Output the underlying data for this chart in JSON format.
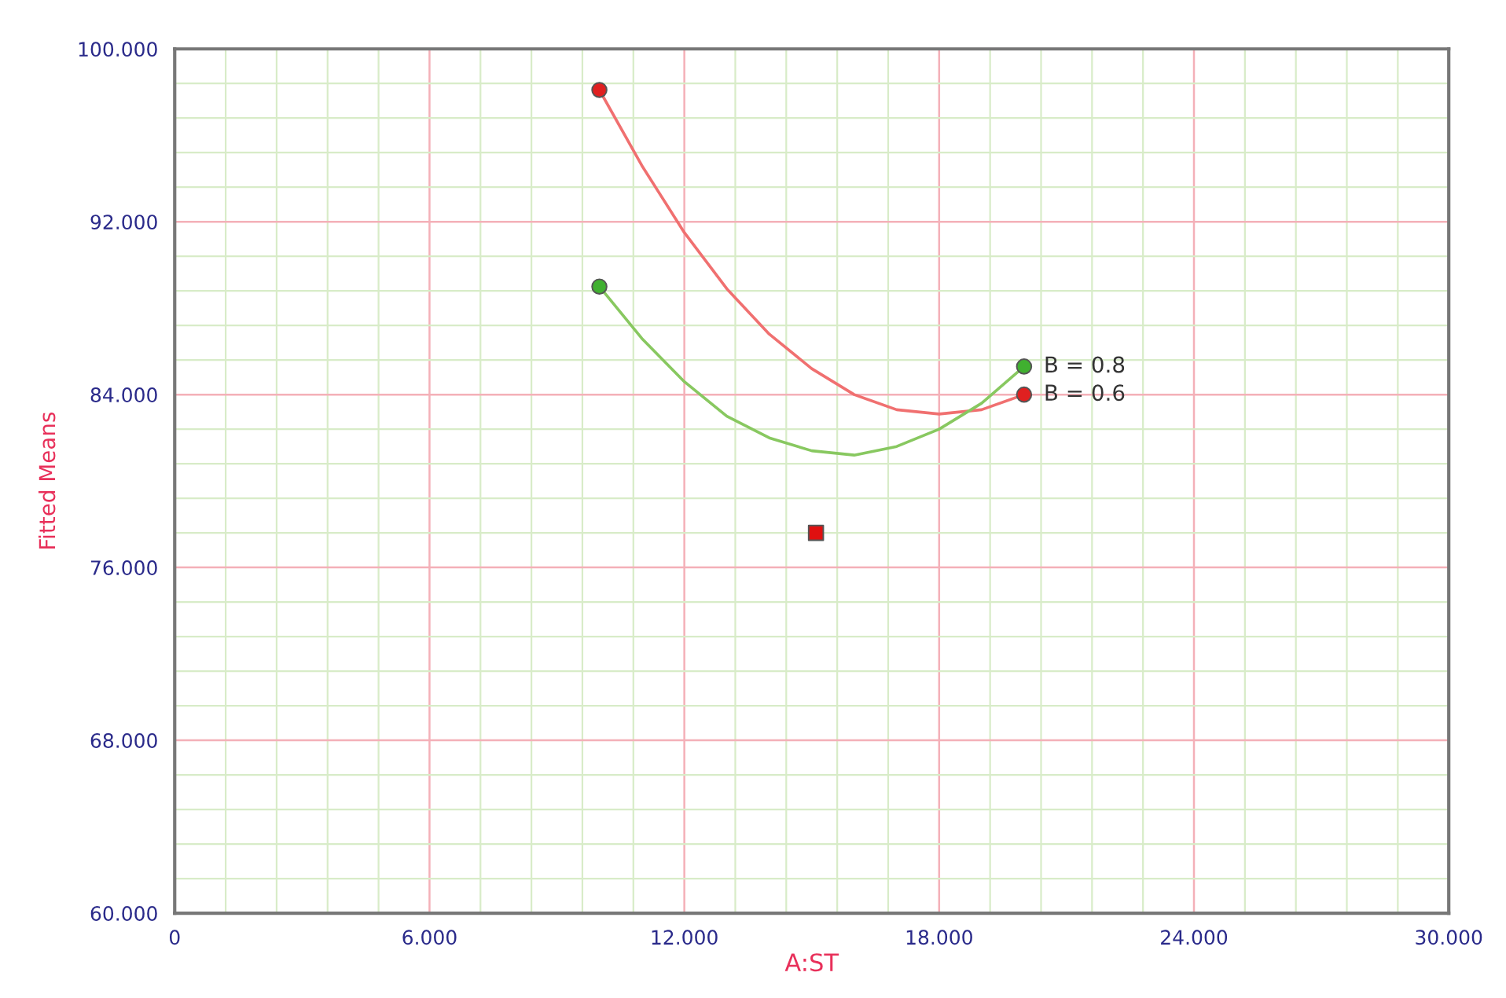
{
  "chart_data": {
    "type": "line",
    "xlabel": "A:ST",
    "ylabel": "Fitted Means",
    "xlim": [
      0,
      30
    ],
    "ylim": [
      60,
      100
    ],
    "xticks": [
      0,
      {
        "value": 6,
        "label": "6.000"
      },
      {
        "value": 12,
        "label": "12.000"
      },
      {
        "value": 18,
        "label": "18.000"
      },
      {
        "value": 24,
        "label": "24.000"
      },
      {
        "value": 30,
        "label": "30.000"
      }
    ],
    "yticks": [
      {
        "value": 60,
        "label": "60.000"
      },
      {
        "value": 68,
        "label": "68.000"
      },
      {
        "value": 76,
        "label": "76.000"
      },
      {
        "value": 84,
        "label": "84.000"
      },
      {
        "value": 92,
        "label": "92.000"
      },
      {
        "value": 100,
        "label": "100.000"
      }
    ],
    "grid": true,
    "legend": false,
    "series": [
      {
        "color": "#f07070",
        "marker": "none",
        "x": [
          10,
          11,
          12,
          13,
          14,
          15,
          16,
          17,
          18,
          19,
          20
        ],
        "values": [
          98.1,
          94.6,
          91.5,
          88.9,
          86.8,
          85.2,
          84.0,
          83.3,
          83.1,
          83.3,
          84.0
        ]
      },
      {
        "color": "#88c860",
        "marker": "none",
        "x": [
          10,
          11,
          12,
          13,
          14,
          15,
          16,
          17,
          18,
          19,
          20
        ],
        "values": [
          89.0,
          86.6,
          84.6,
          83.0,
          82.0,
          81.4,
          81.2,
          81.6,
          82.4,
          83.6,
          85.3
        ]
      },
      {
        "type": "scatter",
        "name": "B = 0.6",
        "color": "#e02020",
        "marker": "circle",
        "x": [
          10,
          20
        ],
        "values": [
          98.1,
          84.0
        ]
      },
      {
        "type": "scatter",
        "name": "B = 0.8",
        "color": "#40b030",
        "marker": "circle",
        "x": [
          10,
          20
        ],
        "values": [
          89.0,
          85.3
        ]
      },
      {
        "type": "scatter",
        "color": "#e01010",
        "marker": "square",
        "x": [
          15.1
        ],
        "values": [
          77.6
        ]
      }
    ]
  }
}
